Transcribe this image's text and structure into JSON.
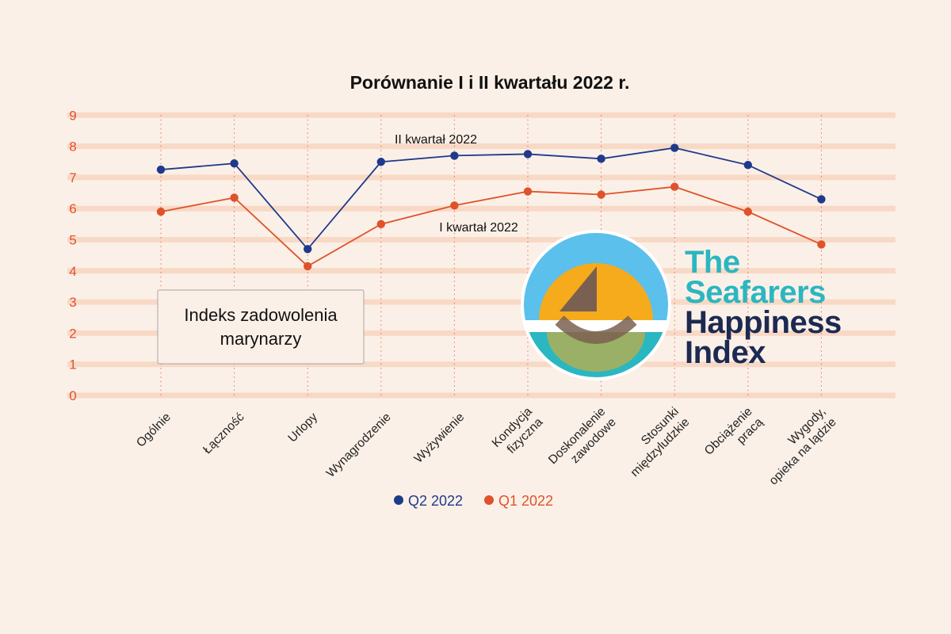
{
  "colors": {
    "background": "#fbf0e8",
    "gridline": "#f8d9c6",
    "q2": "#1f3a8a",
    "q1": "#e0522a",
    "axis_tick": "#e0522a",
    "logo_sky": "#5bc0eb",
    "logo_sun": "#f5ab1b",
    "logo_sea": "#2bb7c2",
    "logo_sail": "#7a6050",
    "logo_text_teal": "#2cb6c0",
    "logo_text_navy": "#1c2a52"
  },
  "info_box": {
    "line1": "Indeks zadowolenia",
    "line2": "marynarzy"
  },
  "logo": {
    "line1": "The",
    "line2": "Seafarers",
    "line3": "Happiness",
    "line4": "Index"
  },
  "chart_data": {
    "type": "line",
    "title": "Porównanie I i II kwartału 2022 r.",
    "ylim": [
      0,
      9
    ],
    "yticks": [
      "0",
      "1",
      "2",
      "3",
      "4",
      "5",
      "6",
      "7",
      "8",
      "9"
    ],
    "categories": [
      [
        "Ogólnie"
      ],
      [
        "Łączność"
      ],
      [
        "Urlopy"
      ],
      [
        "Wynagrodzenie"
      ],
      [
        "Wyżywienie"
      ],
      [
        "Kondycja",
        "fizyczna"
      ],
      [
        "Doskonalenie",
        "zawodowe"
      ],
      [
        "Stosunki",
        "międzyludzkie"
      ],
      [
        "Obciążenie",
        "pracą"
      ],
      [
        "Wygody,",
        "opieka na lądzie"
      ]
    ],
    "series": [
      {
        "name": "Q2 2022",
        "inline_label": "II kwartał 2022",
        "color": "#1f3a8a",
        "values": [
          7.25,
          7.45,
          4.7,
          7.5,
          7.7,
          7.75,
          7.6,
          7.95,
          7.4,
          6.3
        ]
      },
      {
        "name": "Q1 2022",
        "inline_label": "I kwartał 2022",
        "color": "#e0522a",
        "values": [
          5.9,
          6.35,
          4.15,
          5.5,
          6.1,
          6.55,
          6.45,
          6.7,
          5.9,
          4.85
        ]
      }
    ],
    "grid": true,
    "legend": "bottom-center"
  }
}
